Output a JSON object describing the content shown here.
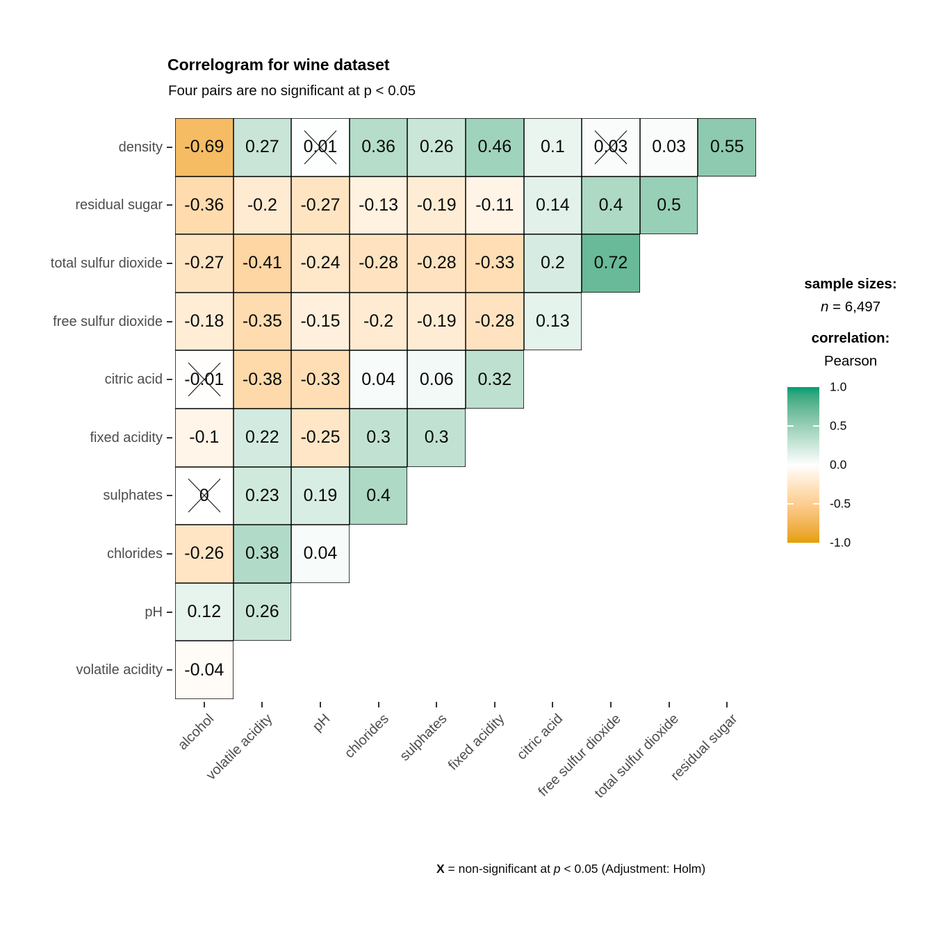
{
  "header": {
    "title": "Correlogram for wine dataset",
    "subtitle": "Four pairs are no significant at p < 0.05"
  },
  "legend": {
    "sample_sizes_label": "sample sizes:",
    "n_symbol": "n",
    "n_value": " = 6,497",
    "correlation_label": "correlation:",
    "method": "Pearson",
    "tick_labels": [
      "1.0",
      "0.5",
      "0.0",
      "-0.5",
      "-1.0"
    ]
  },
  "caption": {
    "x_bold": "X",
    "mid": " = non-significant at ",
    "p_italic": "p",
    "suffix": " < 0.05 (Adjustment: Holm)"
  },
  "chart_data": {
    "type": "heatmap",
    "title": "Correlogram for wine dataset",
    "subtitle": "Four pairs are no significant at p < 0.05",
    "correlation_method": "Pearson",
    "sample_size": "n = 6,497",
    "x_categories": [
      "alcohol",
      "volatile acidity",
      "pH",
      "chlorides",
      "sulphates",
      "fixed acidity",
      "citric acid",
      "free sulfur dioxide",
      "total sulfur dioxide",
      "residual sugar"
    ],
    "y_categories": [
      "density",
      "residual sugar",
      "total sulfur dioxide",
      "free sulfur dioxide",
      "citric acid",
      "fixed acidity",
      "sulphates",
      "chlorides",
      "pH",
      "volatile acidity"
    ],
    "rows": [
      {
        "y": "density",
        "values": [
          -0.69,
          0.27,
          0.01,
          0.36,
          0.26,
          0.46,
          0.1,
          0.03,
          0.03,
          0.55
        ],
        "non_significant_cols": [
          2,
          7
        ]
      },
      {
        "y": "residual sugar",
        "values": [
          -0.36,
          -0.2,
          -0.27,
          -0.13,
          -0.19,
          -0.11,
          0.14,
          0.4,
          0.5
        ],
        "non_significant_cols": []
      },
      {
        "y": "total sulfur dioxide",
        "values": [
          -0.27,
          -0.41,
          -0.24,
          -0.28,
          -0.28,
          -0.33,
          0.2,
          0.72
        ],
        "non_significant_cols": []
      },
      {
        "y": "free sulfur dioxide",
        "values": [
          -0.18,
          -0.35,
          -0.15,
          -0.2,
          -0.19,
          -0.28,
          0.13
        ],
        "non_significant_cols": []
      },
      {
        "y": "citric acid",
        "values": [
          -0.01,
          -0.38,
          -0.33,
          0.04,
          0.06,
          0.32
        ],
        "non_significant_cols": [
          0
        ]
      },
      {
        "y": "fixed acidity",
        "values": [
          -0.1,
          0.22,
          -0.25,
          0.3,
          0.3
        ],
        "non_significant_cols": []
      },
      {
        "y": "sulphates",
        "values": [
          0,
          0.23,
          0.19,
          0.4
        ],
        "non_significant_cols": [
          0
        ]
      },
      {
        "y": "chlorides",
        "values": [
          -0.26,
          0.38,
          0.04
        ],
        "non_significant_cols": []
      },
      {
        "y": "pH",
        "values": [
          0.12,
          0.26
        ],
        "non_significant_cols": []
      },
      {
        "y": "volatile acidity",
        "values": [
          -0.04
        ],
        "non_significant_cols": []
      }
    ],
    "color_scale": {
      "low": "#E69F00",
      "mid": "#FFFFFF",
      "high": "#009E73",
      "domain": [
        -1,
        1
      ],
      "legend_ticks": [
        1.0,
        0.5,
        0.0,
        -0.5,
        -1.0
      ]
    },
    "annotation": "X = non-significant at p < 0.05 (Adjustment: Holm)",
    "legend_position": "right",
    "grid": "off"
  }
}
